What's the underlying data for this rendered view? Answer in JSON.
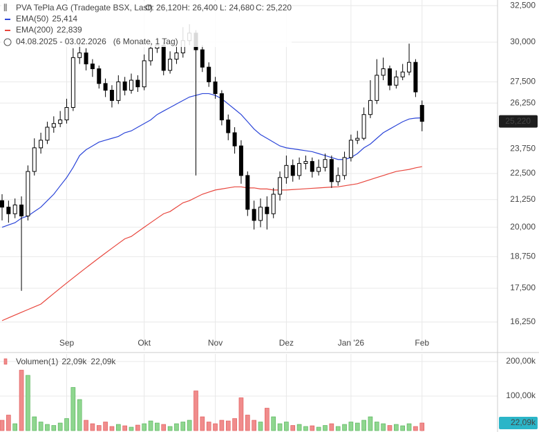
{
  "chart_data": {
    "type": "candlestick",
    "title": "PVA TePla AG (Tradegate BSX, Last)",
    "ohlc_labels": [
      "O: 26,120",
      "H: 26,400",
      "L: 24,680",
      "C: 25,220"
    ],
    "date_range": "04.08.2025 - 03.02.2026",
    "period": "(6 Monate, 1 Tag)",
    "categories": [
      null,
      null,
      null,
      null,
      null,
      null,
      null,
      null,
      null,
      null,
      "Sep",
      null,
      null,
      null,
      null,
      null,
      null,
      null,
      null,
      null,
      null,
      null,
      "Okt",
      null,
      null,
      null,
      null,
      null,
      null,
      null,
      null,
      null,
      null,
      "Nov",
      null,
      null,
      null,
      null,
      null,
      null,
      null,
      null,
      null,
      null,
      "Dez",
      null,
      null,
      null,
      null,
      null,
      null,
      null,
      null,
      null,
      "Jan '26",
      null,
      null,
      null,
      null,
      null,
      null,
      null,
      null,
      null,
      null,
      "Feb"
    ],
    "open": [
      21.2,
      20.9,
      20.6,
      21.0,
      20.5,
      22.6,
      23.8,
      24.2,
      24.9,
      25.1,
      25.3,
      26.0,
      29.0,
      29.3,
      28.6,
      28.3,
      27.4,
      27.0,
      26.4,
      27.5,
      27.0,
      27.6,
      27.2,
      28.8,
      29.6,
      29.8,
      28.2,
      28.9,
      29.3,
      30.1,
      30.6,
      29.5,
      28.4,
      27.5,
      26.8,
      25.3,
      24.6,
      23.9,
      22.4,
      20.8,
      20.3,
      20.9,
      20.6,
      21.5,
      22.3,
      22.9,
      22.4,
      23.0,
      23.1,
      22.6,
      22.8,
      23.2,
      22.1,
      22.4,
      23.3,
      24.2,
      24.3,
      25.6,
      26.4,
      27.9,
      28.3,
      27.3,
      27.8,
      28.1,
      28.7,
      26.12
    ],
    "high": [
      21.5,
      21.2,
      21.3,
      21.4,
      22.9,
      24.3,
      24.6,
      25.2,
      25.5,
      25.8,
      26.5,
      29.6,
      30.0,
      29.6,
      28.9,
      28.5,
      27.7,
      27.3,
      27.9,
      27.8,
      28.0,
      27.9,
      29.2,
      30.0,
      30.3,
      30.0,
      29.4,
      29.8,
      31.0,
      31.2,
      30.8,
      29.8,
      28.7,
      27.8,
      27.0,
      25.6,
      24.9,
      24.2,
      22.6,
      21.2,
      21.3,
      21.4,
      21.8,
      22.6,
      23.4,
      23.2,
      23.3,
      23.4,
      23.3,
      23.2,
      23.5,
      23.4,
      22.8,
      23.6,
      24.5,
      24.7,
      26.0,
      27.6,
      28.9,
      29.0,
      28.5,
      28.2,
      28.6,
      29.9,
      28.9,
      26.4
    ],
    "low": [
      20.3,
      20.2,
      20.4,
      17.4,
      20.3,
      22.4,
      23.5,
      24.0,
      24.6,
      24.9,
      25.1,
      25.8,
      28.6,
      28.2,
      27.8,
      27.1,
      26.6,
      26.0,
      26.2,
      26.7,
      26.8,
      26.9,
      27.0,
      28.5,
      29.3,
      27.9,
      28.0,
      28.6,
      29.0,
      29.8,
      22.4,
      28.1,
      27.2,
      26.5,
      25.0,
      24.2,
      23.5,
      22.0,
      20.5,
      19.9,
      20.0,
      19.9,
      20.4,
      21.2,
      22.0,
      22.1,
      22.2,
      22.7,
      22.3,
      22.4,
      22.6,
      21.8,
      21.9,
      22.2,
      23.1,
      24.0,
      24.2,
      25.4,
      26.2,
      27.6,
      27.0,
      27.1,
      27.6,
      27.9,
      26.6,
      24.68
    ],
    "close": [
      20.9,
      20.6,
      21.0,
      20.5,
      22.6,
      23.8,
      24.2,
      24.9,
      25.1,
      25.3,
      26.0,
      29.0,
      29.3,
      28.6,
      28.3,
      27.4,
      27.0,
      26.4,
      27.5,
      27.0,
      27.6,
      27.2,
      28.8,
      29.6,
      29.8,
      28.2,
      28.9,
      29.3,
      30.1,
      30.6,
      29.5,
      28.4,
      27.5,
      26.8,
      25.3,
      24.6,
      23.9,
      22.4,
      20.8,
      20.3,
      20.9,
      20.6,
      21.5,
      22.3,
      22.9,
      22.4,
      23.0,
      23.1,
      22.6,
      22.8,
      23.2,
      22.1,
      22.4,
      23.3,
      24.2,
      24.3,
      25.6,
      26.4,
      27.9,
      28.3,
      27.3,
      27.8,
      28.1,
      28.7,
      26.9,
      25.22
    ],
    "up_color": "#ffffff",
    "down_color": "#000000",
    "last_label": "25,220",
    "log_scale": true,
    "grid": true,
    "ylim": [
      15.27,
      32.9
    ],
    "yticks": [
      {
        "value": 16.25,
        "label": "16,250"
      },
      {
        "value": 17.5,
        "label": "17,500"
      },
      {
        "value": 18.75,
        "label": "18,750"
      },
      {
        "value": 20,
        "label": "20,000"
      },
      {
        "value": 21.25,
        "label": "21,250"
      },
      {
        "value": 22.5,
        "label": "22,500"
      },
      {
        "value": 23.75,
        "label": "23,750"
      },
      {
        "value": 26.25,
        "label": "26,250"
      },
      {
        "value": 27.5,
        "label": "27,500"
      },
      {
        "value": 30,
        "label": "30,000"
      },
      {
        "value": 32.5,
        "label": "32,500"
      }
    ],
    "overlays": [
      {
        "name": "EMA(50)",
        "color": "#2a44d8",
        "last_label": "25,414",
        "values": [
          20.0,
          20.1,
          20.2,
          20.4,
          20.5,
          20.7,
          20.9,
          21.2,
          21.5,
          21.9,
          22.3,
          22.8,
          23.4,
          23.7,
          23.9,
          24.1,
          24.2,
          24.3,
          24.4,
          24.6,
          24.7,
          24.9,
          25.1,
          25.3,
          25.6,
          25.8,
          26.0,
          26.2,
          26.4,
          26.6,
          26.7,
          26.8,
          26.8,
          26.7,
          26.5,
          26.2,
          25.9,
          25.6,
          25.2,
          24.8,
          24.5,
          24.3,
          24.1,
          23.9,
          23.8,
          23.75,
          23.7,
          23.65,
          23.6,
          23.5,
          23.4,
          23.3,
          23.2,
          23.2,
          23.3,
          23.5,
          23.8,
          24.0,
          24.3,
          24.6,
          24.8,
          25.0,
          25.2,
          25.35,
          25.4,
          25.414
        ]
      },
      {
        "name": "EMA(200)",
        "color": "#e8453c",
        "last_label": "22,839",
        "values": [
          16.3,
          16.4,
          16.5,
          16.6,
          16.7,
          16.8,
          16.9,
          17.1,
          17.3,
          17.5,
          17.7,
          17.9,
          18.1,
          18.3,
          18.5,
          18.7,
          18.9,
          19.1,
          19.3,
          19.5,
          19.6,
          19.8,
          20.0,
          20.2,
          20.4,
          20.6,
          20.7,
          20.9,
          21.1,
          21.2,
          21.35,
          21.5,
          21.6,
          21.7,
          21.75,
          21.8,
          21.85,
          21.85,
          21.8,
          21.8,
          21.75,
          21.75,
          21.7,
          21.7,
          21.7,
          21.72,
          21.74,
          21.76,
          21.78,
          21.8,
          21.82,
          21.84,
          21.85,
          21.9,
          21.95,
          22.0,
          22.1,
          22.2,
          22.3,
          22.4,
          22.5,
          22.6,
          22.65,
          22.7,
          22.78,
          22.839
        ]
      }
    ],
    "volume": {
      "name": "Volumen(1)",
      "last_labels": [
        "22,09k",
        "22,09k",
        "22,09k"
      ],
      "up_color": "#8fd68f",
      "down_color": "#f08c8c",
      "tag_color": "#2bb5c8",
      "ylim": [
        0,
        216000
      ],
      "yticks": [
        {
          "value": 100000,
          "label": "100,00k"
        },
        {
          "value": 200000,
          "label": "200,00k"
        }
      ],
      "values": [
        30000,
        45000,
        20000,
        175000,
        160000,
        40000,
        25000,
        18000,
        15000,
        22000,
        35000,
        125000,
        90000,
        30000,
        20000,
        15000,
        25000,
        12000,
        18000,
        14000,
        10000,
        16000,
        20000,
        28000,
        22000,
        18000,
        12000,
        20000,
        25000,
        30000,
        115000,
        40000,
        25000,
        20000,
        30000,
        28000,
        35000,
        95000,
        45000,
        30000,
        25000,
        65000,
        40000,
        20000,
        25000,
        15000,
        18000,
        12000,
        14000,
        10000,
        15000,
        20000,
        12000,
        18000,
        25000,
        22000,
        30000,
        40000,
        25000,
        20000,
        15000,
        18000,
        14000,
        20000,
        12000,
        22090
      ]
    }
  }
}
